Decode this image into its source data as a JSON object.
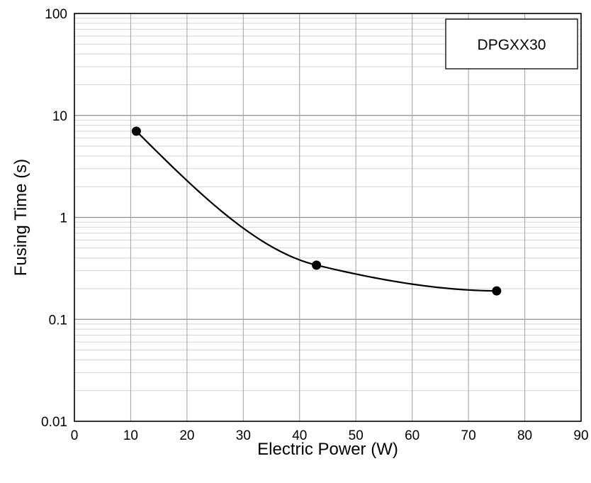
{
  "chart_data": {
    "type": "line",
    "xlabel": "Electric Power (W)",
    "ylabel": "Fusing Time (s)",
    "xlim": [
      0,
      90
    ],
    "ylim": [
      0.01,
      100
    ],
    "y_scale": "log",
    "grid": true,
    "legend_placement": "top-right",
    "x_ticks": [
      "0",
      "10",
      "20",
      "30",
      "40",
      "50",
      "60",
      "70",
      "80",
      "90"
    ],
    "y_ticks": [
      "0.01",
      "0.1",
      "1",
      "10",
      "100"
    ],
    "series": [
      {
        "name": "DPGXX30",
        "color": "#000000",
        "points": [
          {
            "x": 11,
            "y": 7.0
          },
          {
            "x": 43,
            "y": 0.34
          },
          {
            "x": 75,
            "y": 0.19
          }
        ]
      }
    ]
  }
}
